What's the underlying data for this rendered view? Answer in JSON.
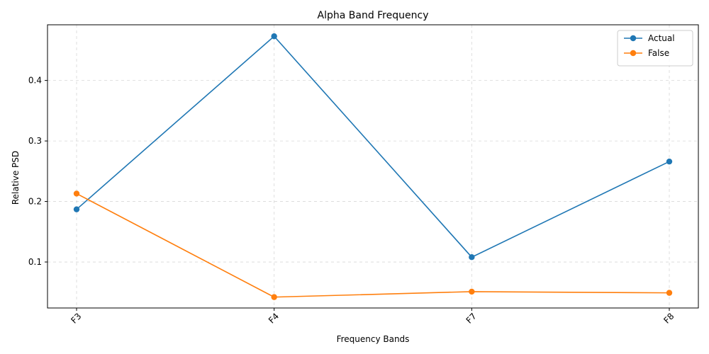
{
  "chart_data": {
    "type": "line",
    "title": "Alpha Band Frequency",
    "xlabel": "Frequency Bands",
    "ylabel": "Relative PSD",
    "categories": [
      "F3",
      "F4",
      "F7",
      "F8"
    ],
    "ylim": [
      0.024,
      0.492
    ],
    "yticks": [
      0.1,
      0.2,
      0.3,
      0.4
    ],
    "ytick_labels": [
      "0.1",
      "0.2",
      "0.3",
      "0.4"
    ],
    "grid": true,
    "legend_position": "top-right",
    "series": [
      {
        "name": "Actual",
        "color": "#1f77b4",
        "values": [
          0.187,
          0.473,
          0.108,
          0.266
        ]
      },
      {
        "name": "False",
        "color": "#ff7f0e",
        "values": [
          0.213,
          0.042,
          0.051,
          0.049
        ]
      }
    ]
  }
}
